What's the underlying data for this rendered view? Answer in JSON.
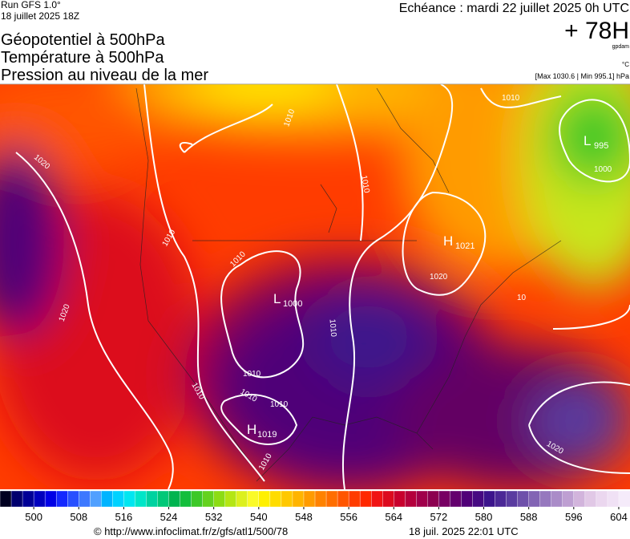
{
  "header": {
    "run": "Run GFS 1.0°",
    "run_date": "18 juillet 2025 18Z",
    "fields": [
      "Géopotentiel à 500hPa",
      "Température à 500hPa",
      "Pression au niveau de la mer"
    ],
    "valid_time": "Echéance : mardi 22 juillet 2025 0h UTC",
    "lead": "+ 78H",
    "unit_geopotential": "gpdam",
    "unit_temperature": "°C",
    "pressure_range": "[Max 1030.6 | Min 995.1] hPa"
  },
  "map": {
    "isobar_labels": [
      "1020",
      "1010",
      "1010",
      "1020",
      "1010",
      "1010",
      "1010",
      "1010",
      "1010",
      "1010",
      "1010",
      "1010",
      "1010",
      "1000",
      "1020",
      "1020",
      "10"
    ],
    "pressure_centers": [
      {
        "letter": "H",
        "value": "1021"
      },
      {
        "letter": "L",
        "value": "1000"
      },
      {
        "letter": "L",
        "value": "995"
      },
      {
        "letter": "H",
        "value": "1019"
      }
    ]
  },
  "colorbar": {
    "xlim": [
      494,
      606
    ],
    "ticks": [
      500,
      508,
      516,
      524,
      532,
      540,
      548,
      556,
      564,
      572,
      580,
      588,
      596,
      604
    ],
    "colors": [
      "#000020",
      "#00006e",
      "#000096",
      "#0000be",
      "#0000e6",
      "#1428ff",
      "#2850ff",
      "#3c78ff",
      "#50a0ff",
      "#00b4ff",
      "#00d2ff",
      "#00e6f0",
      "#00e6c8",
      "#00d2a0",
      "#00c878",
      "#00b450",
      "#14be3c",
      "#3cc828",
      "#64d21e",
      "#8cdc14",
      "#b4e614",
      "#dcf01e",
      "#fafa28",
      "#fff000",
      "#ffdc00",
      "#ffc800",
      "#ffb400",
      "#ff9b00",
      "#ff8200",
      "#ff6e00",
      "#ff5500",
      "#ff3c00",
      "#ff2800",
      "#f01414",
      "#dc0a1e",
      "#c8002d",
      "#b4003c",
      "#a0004b",
      "#8c0050",
      "#780064",
      "#64006e",
      "#500078",
      "#460a82",
      "#3c148c",
      "#4b2896",
      "#5a3ca0",
      "#6e50aa",
      "#8264b4",
      "#9678be",
      "#aa8cc8",
      "#be9fd2",
      "#d2b4dc",
      "#e1c8e6",
      "#ebd7ef",
      "#f0e1f5",
      "#f5ebfa"
    ]
  },
  "footer": {
    "url": "© http://www.infoclimat.fr/z/gfs/atl1/500/78",
    "generated": "18 juil. 2025 22:01 UTC"
  }
}
